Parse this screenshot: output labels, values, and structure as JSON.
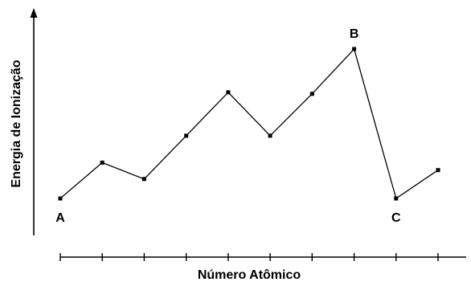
{
  "chart_data": {
    "type": "line",
    "xlabel": "Número Atômico",
    "ylabel": "Energia de Ionização",
    "x": [
      1,
      2,
      3,
      4,
      5,
      6,
      7,
      8,
      9,
      10
    ],
    "series": [
      {
        "values": [
          0,
          0.24,
          0.13,
          0.42,
          0.71,
          0.42,
          0.7,
          1.0,
          0,
          0.19
        ]
      }
    ],
    "point_labels": [
      {
        "index": 0,
        "text": "A"
      },
      {
        "index": 7,
        "text": "B"
      },
      {
        "index": 8,
        "text": "C"
      }
    ],
    "ylim": [
      0,
      1
    ],
    "grid": false,
    "show_tick_labels": false,
    "colors": {
      "line": "#000000",
      "axis": "#000000"
    }
  }
}
